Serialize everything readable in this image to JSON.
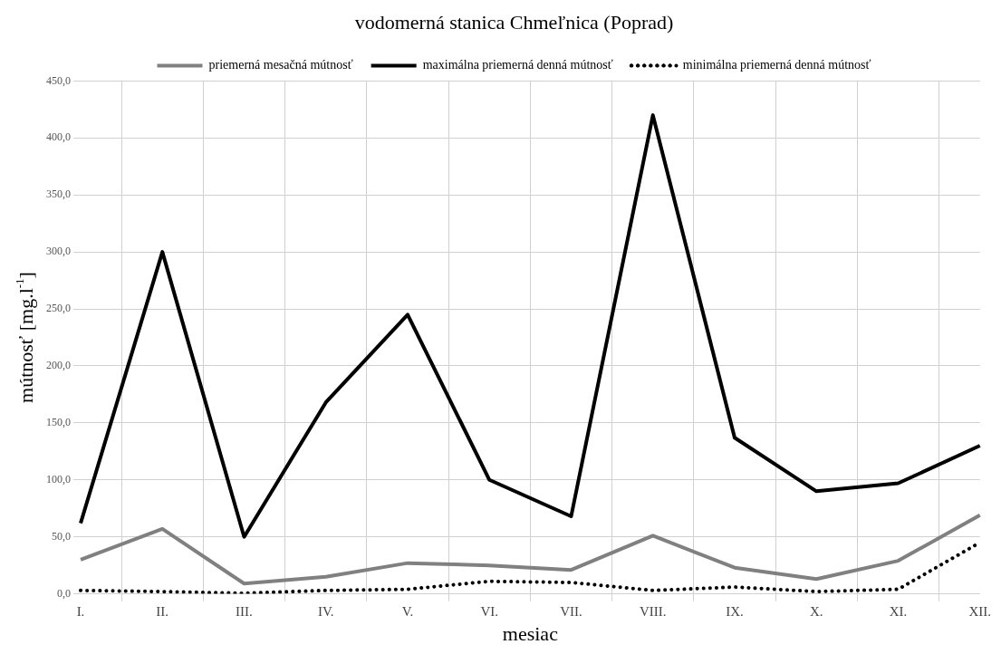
{
  "chart_data": {
    "type": "line",
    "title": "vodomerná stanica Chmeľnica (Poprad)",
    "xlabel": "mesiac",
    "ylabel": "mútnosť [mg.l$^{-1}$]",
    "categories": [
      "I.",
      "II.",
      "III.",
      "IV.",
      "V.",
      "VI.",
      "VII.",
      "VIII.",
      "IX.",
      "X.",
      "XI.",
      "XII."
    ],
    "series": [
      {
        "name": "priemerná mesačná mútnosť",
        "color": "#808080",
        "line_style": "solid",
        "values": [
          30,
          57,
          9,
          15,
          27,
          25,
          21,
          51,
          23,
          13,
          29,
          69
        ]
      },
      {
        "name": "maximálna priemerná denná mútnosť",
        "color": "#000000",
        "line_style": "solid",
        "values": [
          62,
          300,
          50,
          168,
          245,
          100,
          68,
          420,
          137,
          90,
          97,
          130
        ]
      },
      {
        "name": "minimálna priemerná denná mútnosť",
        "color": "#000000",
        "line_style": "dotted",
        "values": [
          3,
          2,
          0.5,
          3,
          4,
          11,
          10,
          3,
          6,
          2,
          4,
          45
        ]
      }
    ],
    "ylim": [
      0,
      450
    ],
    "yticks": [
      {
        "value": 0,
        "label": "0,0"
      },
      {
        "value": 50,
        "label": "50,0"
      },
      {
        "value": 100,
        "label": "100,0"
      },
      {
        "value": 150,
        "label": "150,0"
      },
      {
        "value": 200,
        "label": "200,0"
      },
      {
        "value": 250,
        "label": "250,0"
      },
      {
        "value": 300,
        "label": "300,0"
      },
      {
        "value": 350,
        "label": "350,0"
      },
      {
        "value": 400,
        "label": "400,0"
      },
      {
        "value": 450,
        "label": "450,0"
      }
    ],
    "grid": true,
    "legend": "top",
    "marker": "none"
  }
}
